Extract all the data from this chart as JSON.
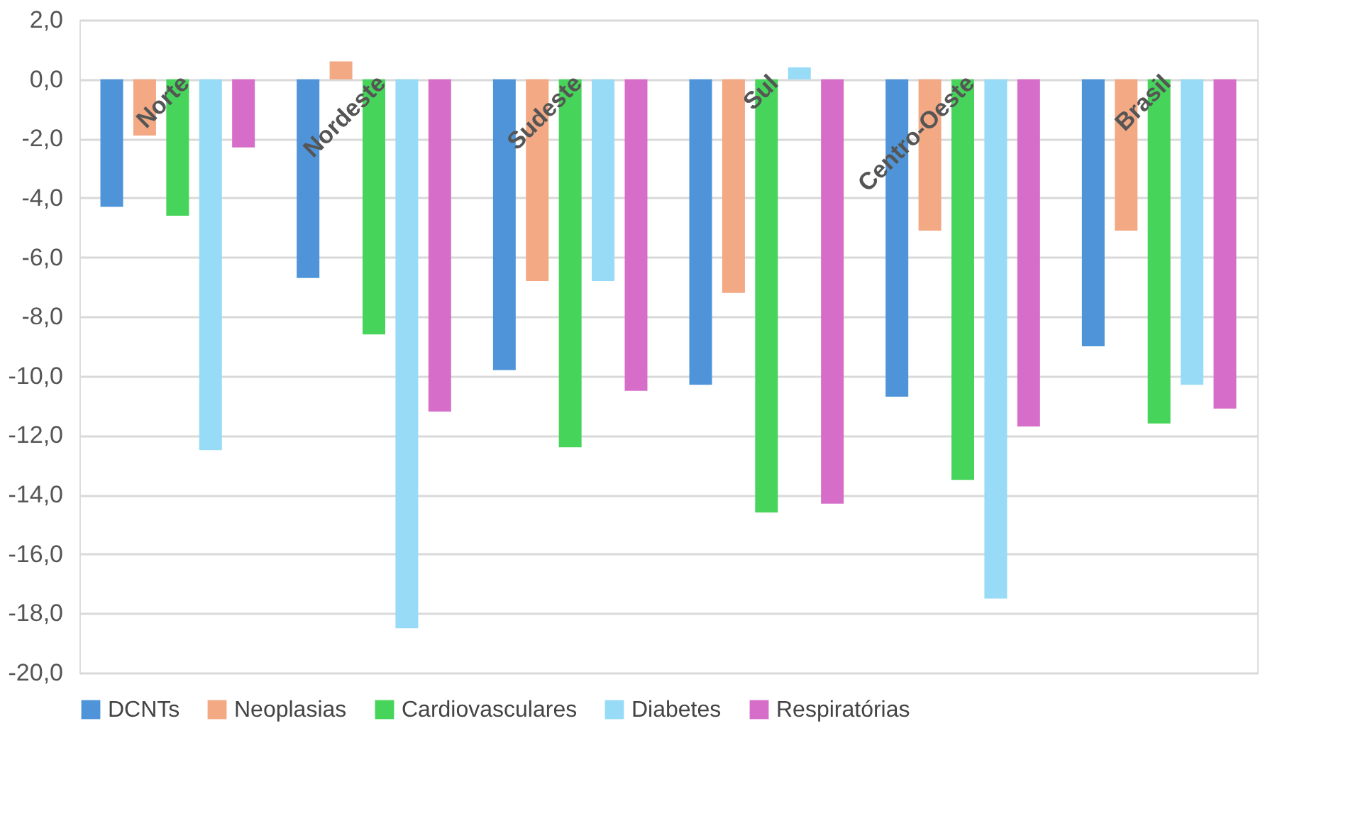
{
  "chart_data": {
    "type": "bar",
    "categories": [
      "Norte",
      "Nordeste",
      "Sudeste",
      "Sul",
      "Centro-Oeste",
      "Brasil"
    ],
    "series": [
      {
        "name": "DCNTs",
        "color": "#4f94d8",
        "values": [
          -4.3,
          -6.7,
          -9.8,
          -10.3,
          -10.7,
          -9.0
        ]
      },
      {
        "name": "Neoplasias",
        "color": "#f2a984",
        "values": [
          -1.9,
          0.6,
          -6.8,
          -7.2,
          -5.1,
          -5.1
        ]
      },
      {
        "name": "Cardiovasculares",
        "color": "#47d45a",
        "values": [
          -4.6,
          -8.6,
          -12.4,
          -14.6,
          -13.5,
          -11.6
        ]
      },
      {
        "name": "Diabetes",
        "color": "#97dbf7",
        "values": [
          -12.5,
          -18.5,
          -6.8,
          0.4,
          -17.5,
          -10.3
        ]
      },
      {
        "name": "Respiratórias",
        "color": "#d66ec9",
        "values": [
          -2.3,
          -11.2,
          -10.5,
          -14.3,
          -11.7,
          -11.1
        ]
      }
    ],
    "ylim": [
      -20,
      2
    ],
    "yticks": [
      {
        "value": 2,
        "label": "2,0"
      },
      {
        "value": 0,
        "label": "0,0"
      },
      {
        "value": -2,
        "label": "-2,0"
      },
      {
        "value": -4,
        "label": "-4,0"
      },
      {
        "value": -6,
        "label": "-6,0"
      },
      {
        "value": -8,
        "label": "-8,0"
      },
      {
        "value": -10,
        "label": "-10,0"
      },
      {
        "value": -12,
        "label": "-12,0"
      },
      {
        "value": -14,
        "label": "-14,0"
      },
      {
        "value": -16,
        "label": "-16,0"
      },
      {
        "value": -18,
        "label": "-18,0"
      },
      {
        "value": -20,
        "label": "-20,0"
      }
    ],
    "grid": "y",
    "legend": "bottom"
  }
}
